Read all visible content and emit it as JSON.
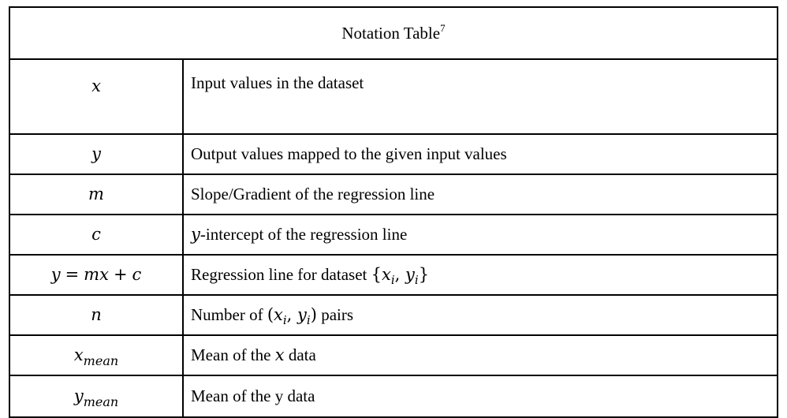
{
  "table": {
    "title": "Notation Table",
    "title_footnote": "7",
    "rows": [
      {
        "symbol": "x",
        "description": "Input values in the dataset"
      },
      {
        "symbol": "y",
        "description": "Output values mapped to the given input values"
      },
      {
        "symbol": "m",
        "description": "Slope/Gradient of the regression line"
      },
      {
        "symbol": "c",
        "description_var": "y",
        "description": "-intercept of the regression line"
      },
      {
        "symbol_parts": [
          "y",
          "=",
          "mx",
          "+",
          "c"
        ],
        "description": "Regression line for dataset",
        "description_math": [
          "{",
          "x",
          "i",
          ",",
          "y",
          "i",
          "}"
        ]
      },
      {
        "symbol": "n",
        "description_pre": "Number of",
        "description_math": [
          "(",
          "x",
          "i",
          ",",
          "y",
          "i",
          ")"
        ],
        "description_post": "pairs"
      },
      {
        "symbol_base": "x",
        "symbol_sub": "mean",
        "description_pre": "Mean of the",
        "description_var": "x",
        "description_post": "data"
      },
      {
        "symbol_base": "y",
        "symbol_sub": "mean",
        "description": "Mean of the y data"
      }
    ]
  }
}
